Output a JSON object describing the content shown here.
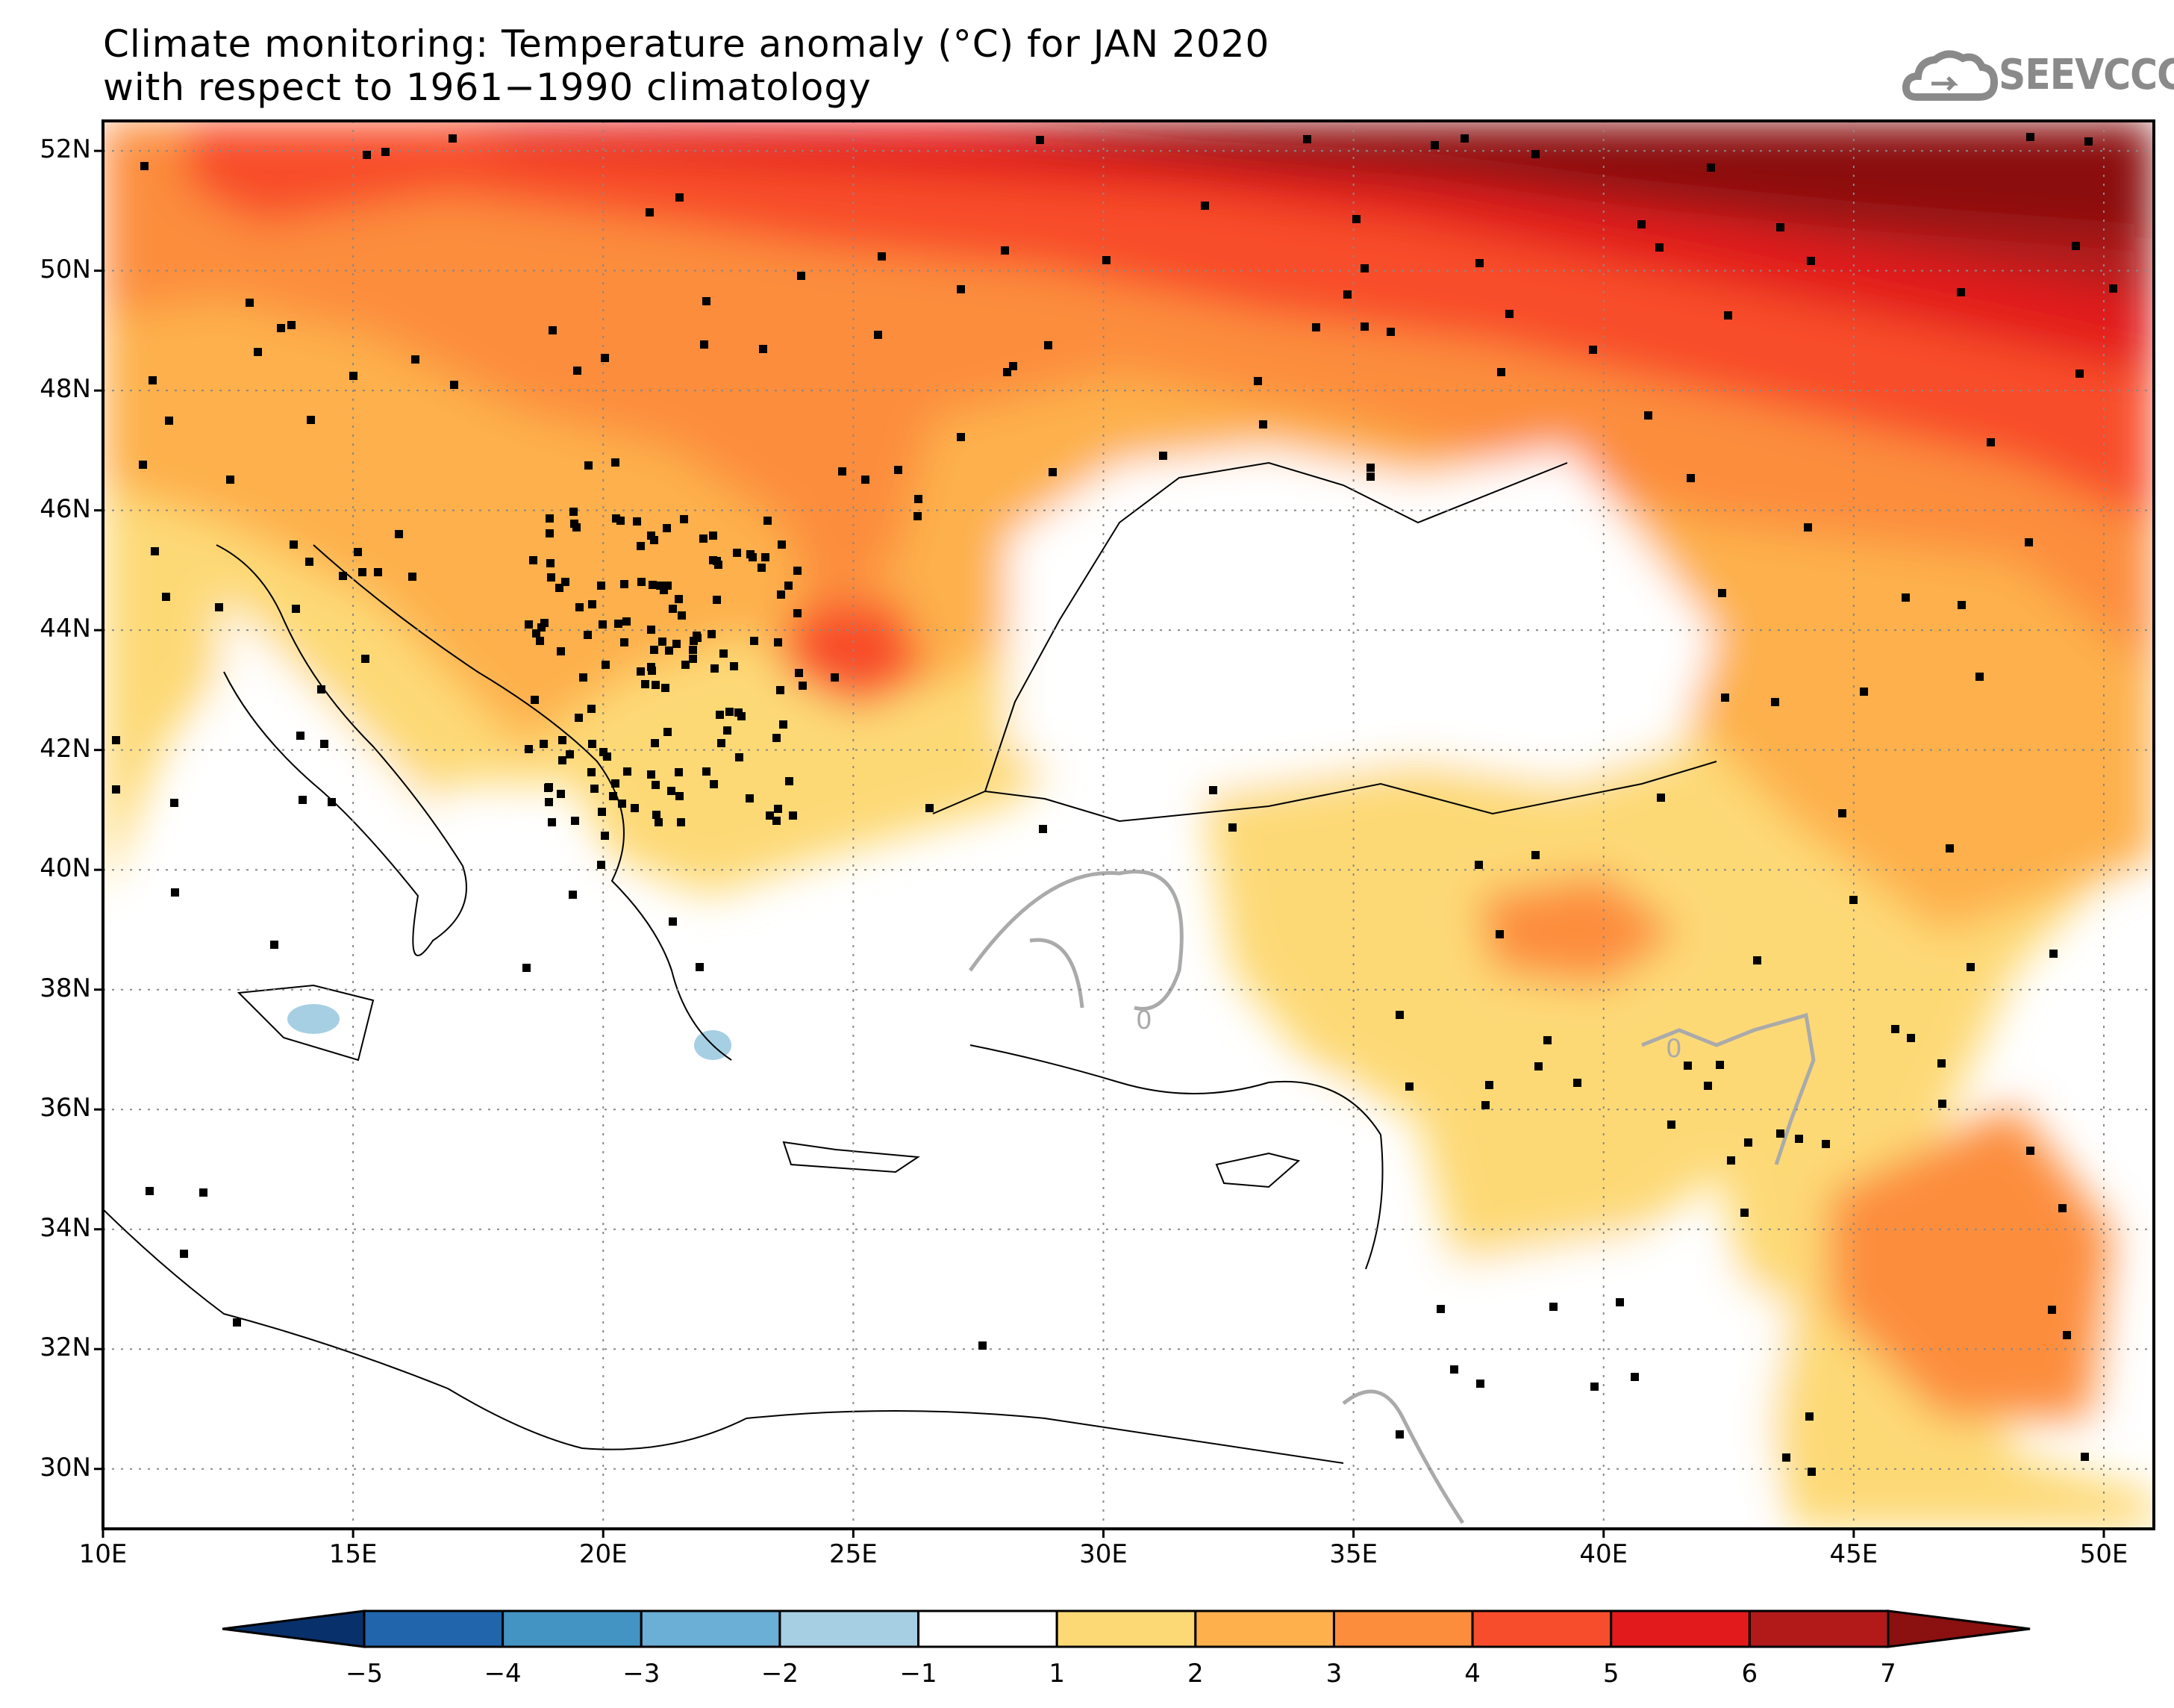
{
  "title": {
    "line1": "Climate monitoring: Temperature anomaly (°C) for JAN 2020",
    "line2": "with respect to 1961−1990 climatology"
  },
  "logo": {
    "text": "SEEVCCC",
    "icon": "cloud-icon",
    "color": "#8a8a8a"
  },
  "map": {
    "lon_range": [
      10,
      51
    ],
    "lat_range": [
      29,
      52.5
    ],
    "lat_ticks": [
      "52N",
      "50N",
      "48N",
      "46N",
      "44N",
      "42N",
      "40N",
      "38N",
      "36N",
      "34N",
      "32N",
      "30N"
    ],
    "lat_values": [
      52,
      50,
      48,
      46,
      44,
      42,
      40,
      38,
      36,
      34,
      32,
      30
    ],
    "lon_ticks": [
      "10E",
      "15E",
      "20E",
      "25E",
      "30E",
      "35E",
      "40E",
      "45E",
      "50E"
    ],
    "lon_values": [
      10,
      15,
      20,
      25,
      30,
      35,
      40,
      45,
      50
    ],
    "contour_label": "0"
  },
  "colorbar": {
    "labels": [
      "−5",
      "−4",
      "−3",
      "−2",
      "−1",
      "1",
      "2",
      "3",
      "4",
      "5",
      "6",
      "7"
    ],
    "colors": [
      "#08306b",
      "#2166ac",
      "#4393c3",
      "#6baed6",
      "#a6cfe3",
      "#ffffff",
      "#fdd976",
      "#fdb04b",
      "#fc8d3c",
      "#f84d2c",
      "#e31a1c",
      "#b21a1a",
      "#8b1010"
    ]
  }
}
